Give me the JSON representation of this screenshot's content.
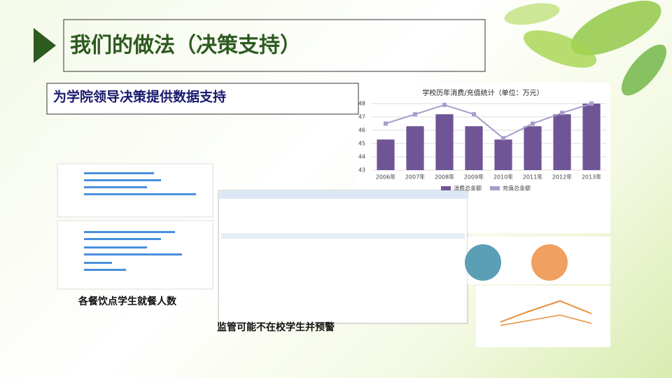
{
  "slide": {
    "title": "我们的做法（决策支持）",
    "subtitle": "为学院领导决策提供数据支持",
    "caption_left": "各餐饮点学生就餐人数",
    "caption_bottom": "监管可能不在校学生并预警"
  },
  "chart_data": {
    "type": "bar_line",
    "title": "学校历年消费/充值统计（单位：万元）",
    "categories": [
      "2006年",
      "2007年",
      "2008年",
      "2009年",
      "2010年",
      "2011年",
      "2012年",
      "2013年"
    ],
    "series": [
      {
        "name": "消费总金额",
        "color": "#6f5595",
        "type": "bar",
        "values": [
          45.3,
          46.3,
          47.2,
          46.3,
          45.3,
          46.3,
          47.2,
          48.0
        ]
      },
      {
        "name": "充值总金额",
        "color": "#a99ccc",
        "type": "line",
        "values": [
          46.5,
          47.2,
          47.9,
          47.2,
          45.4,
          46.5,
          47.3,
          48.0
        ]
      }
    ],
    "ylim": [
      43,
      48
    ],
    "yticks": [
      43,
      44,
      45,
      46,
      47,
      48
    ],
    "grid": true
  }
}
